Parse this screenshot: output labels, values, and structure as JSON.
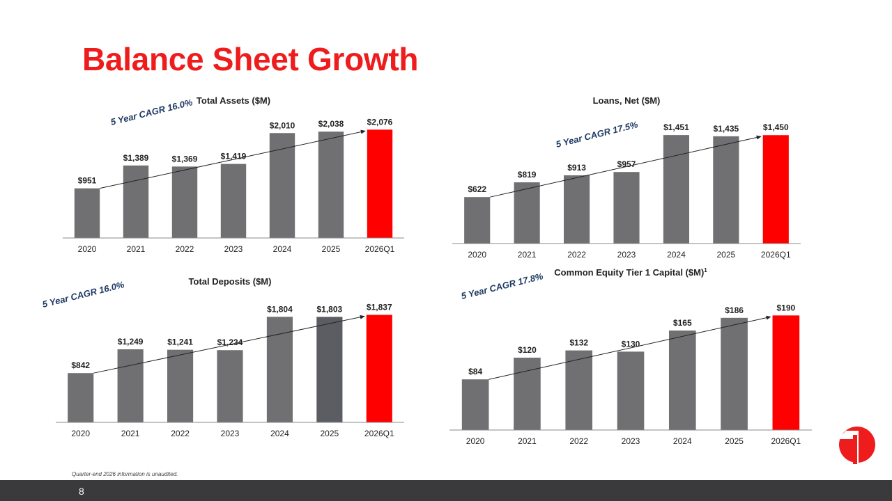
{
  "slide": {
    "title": "Balance Sheet Growth",
    "footnote": "Quarter-end 2026 information is unaudited.",
    "page_number": "8"
  },
  "colors": {
    "title": "#ee1c1c",
    "bar": "#707073",
    "bar_dark": "#5c5c63",
    "bar_highlight": "#ff0000",
    "cagr_text": "#1f3a64",
    "footer": "#3a3a3c"
  },
  "icons": {
    "logo": "brand-logo-icon"
  },
  "chart_data": [
    {
      "id": "total-assets",
      "type": "bar",
      "title": "Total Assets ($M)",
      "superscript": "",
      "categories": [
        "2020",
        "2021",
        "2022",
        "2023",
        "2024",
        "2025",
        "2026Q1"
      ],
      "values": [
        951,
        1389,
        1369,
        1419,
        2010,
        2038,
        2076
      ],
      "value_labels": [
        "$951",
        "$1,389",
        "$1,369",
        "$1,419",
        "$2,010",
        "$2,038",
        "$2,076"
      ],
      "highlight_index": 6,
      "dark_index": -1,
      "ylim": [
        0,
        2400
      ],
      "cagr_label": "5 Year CAGR 16.0%",
      "trend": {
        "from_index": 0,
        "to_index": 6
      }
    },
    {
      "id": "loans-net",
      "type": "bar",
      "title": "Loans, Net ($M)",
      "superscript": "",
      "categories": [
        "2020",
        "2021",
        "2022",
        "2023",
        "2024",
        "2025",
        "2026Q1"
      ],
      "values": [
        622,
        819,
        913,
        957,
        1451,
        1435,
        1450
      ],
      "value_labels": [
        "$622",
        "$819",
        "$913",
        "$957",
        "$1,451",
        "$1,435",
        "$1,450"
      ],
      "highlight_index": 6,
      "dark_index": -1,
      "ylim": [
        0,
        1750
      ],
      "cagr_label": "5 Year CAGR 17.5%",
      "trend": {
        "from_index": 0,
        "to_index": 6
      }
    },
    {
      "id": "total-deposits",
      "type": "bar",
      "title": "Total Deposits ($M)",
      "superscript": "",
      "categories": [
        "2020",
        "2021",
        "2022",
        "2023",
        "2024",
        "2025",
        "2026Q1"
      ],
      "values": [
        842,
        1249,
        1241,
        1234,
        1804,
        1803,
        1837
      ],
      "value_labels": [
        "$842",
        "$1,249",
        "$1,241",
        "$1,234",
        "$1,804",
        "$1,803",
        "$1,837"
      ],
      "highlight_index": 6,
      "dark_index": 5,
      "ylim": [
        0,
        2200
      ],
      "cagr_label": "5 Year CAGR 16.0%",
      "trend": {
        "from_index": 0,
        "to_index": 6
      }
    },
    {
      "id": "cet1-capital",
      "type": "bar",
      "title": "Common Equity Tier 1 Capital ($M)",
      "superscript": "1",
      "categories": [
        "2020",
        "2021",
        "2022",
        "2023",
        "2024",
        "2025",
        "2026Q1"
      ],
      "values": [
        84,
        120,
        132,
        130,
        165,
        186,
        190
      ],
      "value_labels": [
        "$84",
        "$120",
        "$132",
        "$130",
        "$165",
        "$186",
        "$190"
      ],
      "highlight_index": 6,
      "dark_index": -1,
      "ylim": [
        0,
        240
      ],
      "cagr_label": "5 Year CAGR 17.8%",
      "trend": {
        "from_index": 0,
        "to_index": 6
      }
    }
  ]
}
